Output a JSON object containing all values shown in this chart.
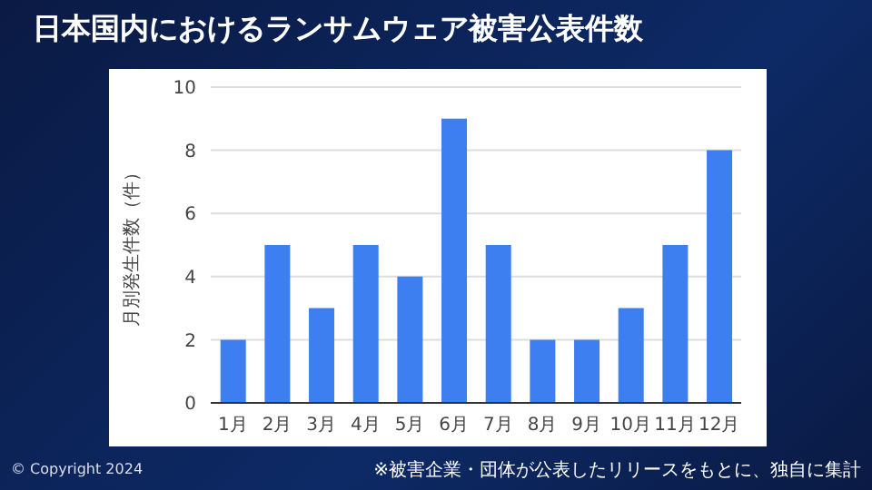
{
  "chart_data": {
    "type": "bar",
    "title": "日本国内におけるランサムウェア被害公表件数",
    "categories": [
      "1月",
      "2月",
      "3月",
      "4月",
      "5月",
      "6月",
      "7月",
      "8月",
      "9月",
      "10月",
      "11月",
      "12月"
    ],
    "values": [
      2,
      5,
      3,
      5,
      4,
      9,
      5,
      2,
      2,
      3,
      5,
      8
    ],
    "color": "#3d7ef0",
    "ylabel": "月別発生件数（件）",
    "ylim": [
      0,
      10
    ],
    "yticks": [
      0,
      2,
      4,
      6,
      8,
      10
    ],
    "grid": "y",
    "annotations": [
      "© Copyright 2024",
      "※被害企業・団体が公表したリリースをもとに、独自に集計"
    ]
  }
}
